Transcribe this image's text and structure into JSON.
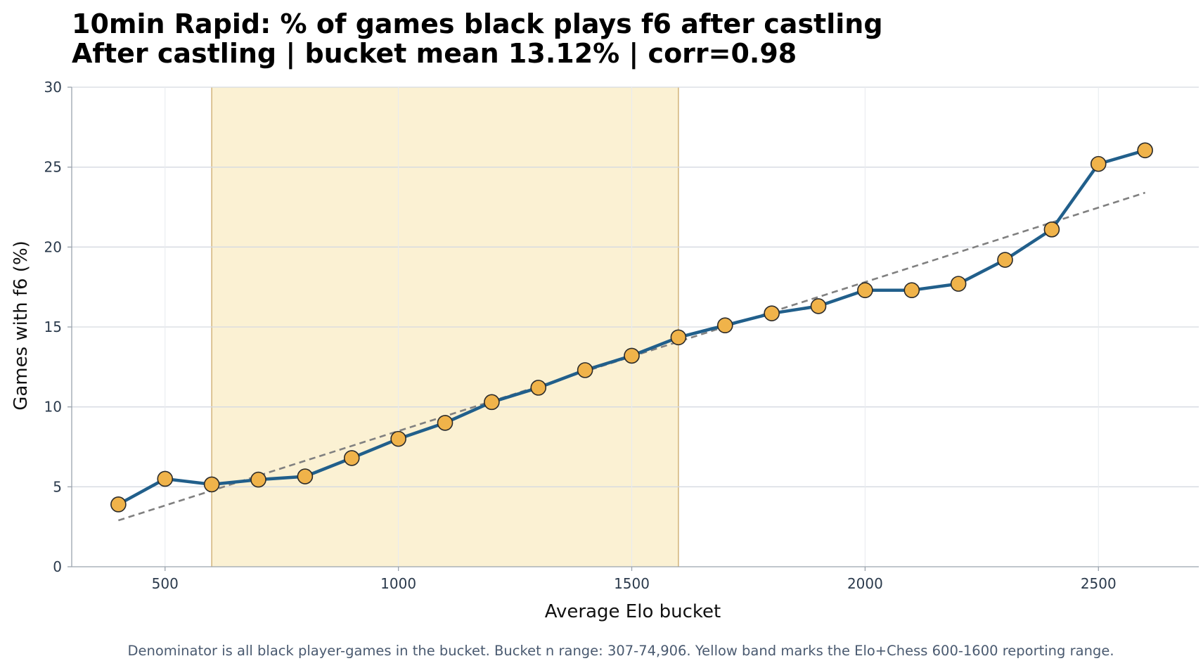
{
  "chart_data": {
    "type": "line",
    "title": "10min Rapid: % of games black plays f6 after castling",
    "subtitle": "After castling | bucket mean 13.12% | corr=0.98",
    "xlabel": "Average Elo bucket",
    "ylabel": "Games with f6 (%)",
    "xlim": [
      300,
      2715
    ],
    "ylim": [
      0,
      30
    ],
    "xticks": [
      500,
      1000,
      1500,
      2000,
      2500
    ],
    "yticks": [
      0,
      5,
      10,
      15,
      20,
      25,
      30
    ],
    "grid": true,
    "x": [
      400,
      500,
      600,
      700,
      800,
      900,
      1000,
      1100,
      1200,
      1300,
      1400,
      1500,
      1600,
      1700,
      1800,
      1900,
      2000,
      2100,
      2200,
      2300,
      2400,
      2500,
      2600
    ],
    "series": [
      {
        "values": [
          3.9,
          5.5,
          5.15,
          5.45,
          5.65,
          6.8,
          8.0,
          9.0,
          10.3,
          11.2,
          12.3,
          13.2,
          14.35,
          15.1,
          15.85,
          16.3,
          17.3,
          17.3,
          17.7,
          19.2,
          21.1,
          25.2,
          26.05
        ]
      }
    ],
    "trendline": {
      "x": [
        400,
        2600
      ],
      "y": [
        2.9,
        23.4
      ]
    },
    "highlight_band": {
      "x_start": 600,
      "x_end": 1600
    },
    "footnote": "Denominator is all black player-games in the bucket. Bucket n range: 307-74,906. Yellow band marks the Elo+Chess 600-1600 reporting range.",
    "colors": {
      "line": "#215f8b",
      "marker_fill": "#f0b34a",
      "marker_edge": "#2a2a2a",
      "band_fill": "#fbf1d3",
      "band_edge": "#d2b47a",
      "trend": "#808080",
      "grid": "#d5d9e0",
      "axis": "#9aa3ad"
    }
  }
}
